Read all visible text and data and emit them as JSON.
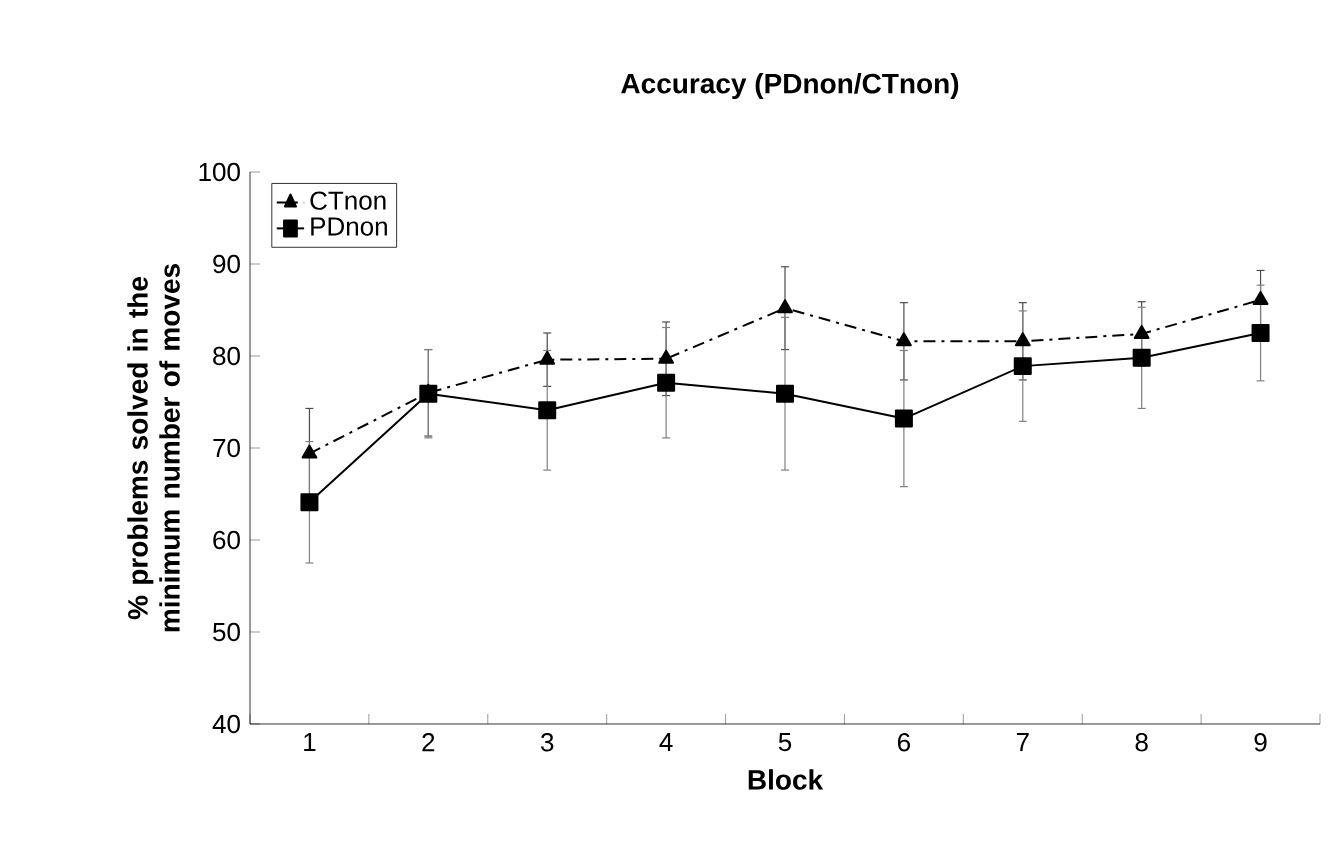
{
  "chart_data": {
    "type": "line",
    "title": "Accuracy (PDnon/CTnon)",
    "xlabel": "Block",
    "ylabel": "% problems solved in the minimum number of moves",
    "categories": [
      "1",
      "2",
      "3",
      "4",
      "5",
      "6",
      "7",
      "8",
      "9"
    ],
    "series": [
      {
        "name": "CTnon",
        "color": "#000000",
        "marker": "triangle",
        "line_style": "dashed",
        "values": [
          69.4,
          76,
          79.6,
          79.7,
          85.2,
          81.6,
          81.6,
          82.4,
          86.1
        ],
        "errors": [
          4.9,
          4.7,
          2.9,
          4,
          4.5,
          4.2,
          4.2,
          3.5,
          3.2
        ]
      },
      {
        "name": "PDnon",
        "color": "#000000",
        "marker": "square",
        "line_style": "solid",
        "values": [
          64.1,
          75.9,
          74.1,
          77.1,
          75.9,
          73.2,
          78.9,
          79.8,
          82.5
        ],
        "errors": [
          6.6,
          4.8,
          6.5,
          6,
          8.3,
          7.4,
          6,
          5.5,
          5.2
        ]
      }
    ],
    "ylim": [
      40,
      100
    ],
    "yticks": [
      40,
      50,
      60,
      70,
      80,
      90,
      100
    ],
    "grid": false,
    "legend": "top left"
  }
}
